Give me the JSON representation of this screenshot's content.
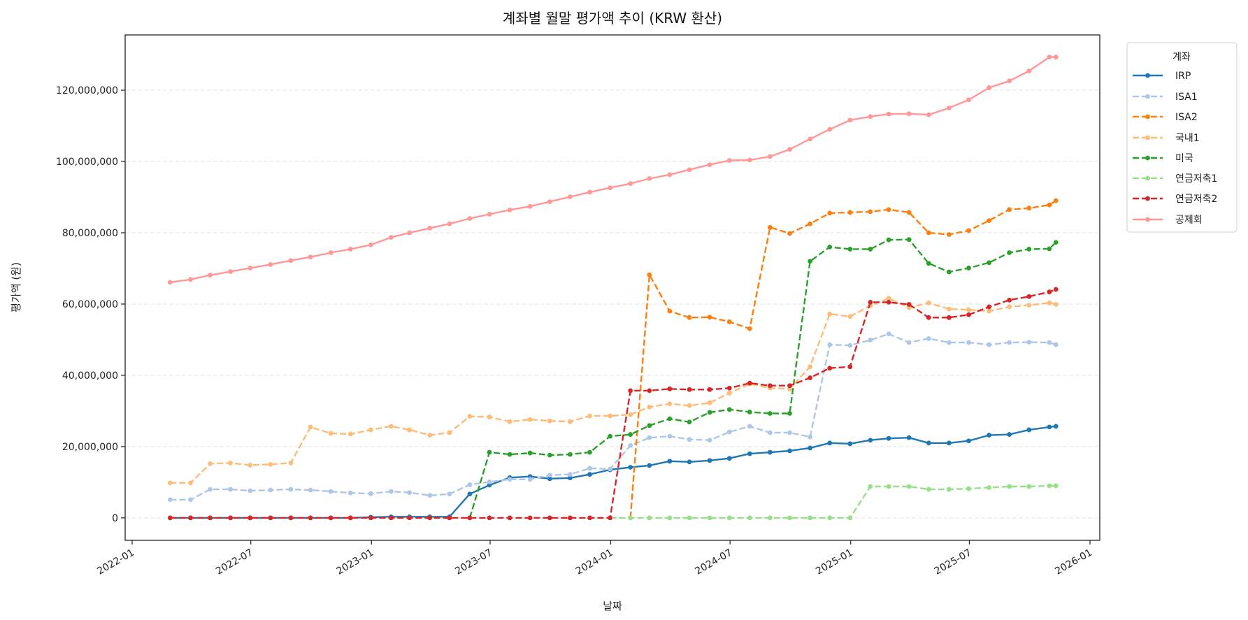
{
  "chart_data": {
    "type": "line",
    "title": "계좌별 월말 평가액 추이 (KRW 환산)",
    "xlabel": "날짜",
    "ylabel": "평가액 (원)",
    "xlim": [
      "2021-12-01",
      "2026-01-20"
    ],
    "ylim": [
      -6300000,
      135500000
    ],
    "x_ticks": [
      "2022-01",
      "2022-07",
      "2023-01",
      "2023-07",
      "2024-01",
      "2024-07",
      "2025-01",
      "2025-07",
      "2026-01"
    ],
    "y_ticks": [
      0,
      20000000,
      40000000,
      60000000,
      80000000,
      100000000,
      120000000
    ],
    "y_tick_labels": [
      "0",
      "20,000,000",
      "40,000,000",
      "60,000,000",
      "80,000,000",
      "100,000,000",
      "120,000,000"
    ],
    "grid": "horizontal dashed",
    "legend": {
      "title": "계좌",
      "placement": "outside-top-right"
    },
    "x": [
      "2022-02-28",
      "2022-03-31",
      "2022-04-30",
      "2022-05-31",
      "2022-06-30",
      "2022-07-31",
      "2022-08-31",
      "2022-09-30",
      "2022-10-31",
      "2022-11-30",
      "2022-12-31",
      "2023-01-31",
      "2023-02-28",
      "2023-03-31",
      "2023-04-30",
      "2023-05-31",
      "2023-06-30",
      "2023-07-31",
      "2023-08-31",
      "2023-09-30",
      "2023-10-31",
      "2023-11-30",
      "2023-12-31",
      "2024-01-31",
      "2024-02-29",
      "2024-03-31",
      "2024-04-30",
      "2024-05-31",
      "2024-06-30",
      "2024-07-31",
      "2024-08-31",
      "2024-09-30",
      "2024-10-31",
      "2024-11-30",
      "2024-12-31",
      "2025-01-31",
      "2025-02-28",
      "2025-03-31",
      "2025-04-30",
      "2025-05-31",
      "2025-06-30",
      "2025-07-31",
      "2025-08-31",
      "2025-09-30",
      "2025-10-31",
      "2025-11-10"
    ],
    "series": [
      {
        "name": "IRP",
        "color": "#1f77b4",
        "linestyle": "solid",
        "values": [
          0,
          0,
          0,
          0,
          0,
          0,
          0,
          0,
          0,
          0,
          200000,
          300000,
          300000,
          300000,
          300000,
          6700000,
          9200000,
          11300000,
          11600000,
          11000000,
          11200000,
          12200000,
          13500000,
          14200000,
          14700000,
          15900000,
          15700000,
          16100000,
          16700000,
          18000000,
          18400000,
          18800000,
          19600000,
          21000000,
          20800000,
          21800000,
          22300000,
          22500000,
          21000000,
          21000000,
          21600000,
          23200000,
          23400000,
          24700000,
          25500000,
          25700000
        ]
      },
      {
        "name": "ISA1",
        "color": "#aec7e8",
        "linestyle": "dashed",
        "values": [
          5100000,
          5100000,
          8000000,
          8000000,
          7600000,
          7800000,
          8000000,
          7800000,
          7400000,
          7000000,
          6800000,
          7400000,
          7100000,
          6300000,
          6700000,
          9300000,
          10100000,
          10800000,
          10800000,
          12000000,
          12200000,
          13900000,
          13700000,
          20300000,
          22500000,
          22900000,
          22000000,
          21800000,
          24100000,
          25700000,
          23900000,
          23900000,
          22700000,
          48600000,
          48400000,
          49900000,
          51600000,
          49200000,
          50300000,
          49200000,
          49200000,
          48600000,
          49200000,
          49300000,
          49200000,
          48600000
        ]
      },
      {
        "name": "ISA2",
        "color": "#ff7f0e",
        "linestyle": "dashed",
        "values": [
          null,
          null,
          null,
          null,
          null,
          null,
          null,
          null,
          null,
          null,
          null,
          null,
          null,
          null,
          null,
          null,
          null,
          null,
          null,
          null,
          null,
          null,
          null,
          0,
          68200000,
          58000000,
          56200000,
          56300000,
          55000000,
          53100000,
          81500000,
          79800000,
          82500000,
          85500000,
          85700000,
          85900000,
          86500000,
          85700000,
          80000000,
          79500000,
          80600000,
          83400000,
          86500000,
          86900000,
          87800000,
          89000000
        ]
      },
      {
        "name": "국내1",
        "color": "#ffbb78",
        "linestyle": "dashed",
        "values": [
          9800000,
          9800000,
          15200000,
          15400000,
          14800000,
          15000000,
          15400000,
          25500000,
          23700000,
          23500000,
          24700000,
          25700000,
          24700000,
          23200000,
          23900000,
          28500000,
          28300000,
          27000000,
          27600000,
          27200000,
          27000000,
          28600000,
          28600000,
          29000000,
          31100000,
          32000000,
          31500000,
          32300000,
          35000000,
          37600000,
          36400000,
          36200000,
          42400000,
          57200000,
          56500000,
          59500000,
          61600000,
          59000000,
          60300000,
          58600000,
          58400000,
          58000000,
          59200000,
          59700000,
          60300000,
          59900000
        ]
      },
      {
        "name": "미국",
        "color": "#2ca02c",
        "linestyle": "dashed",
        "values": [
          null,
          null,
          null,
          null,
          null,
          null,
          null,
          null,
          null,
          null,
          null,
          null,
          null,
          null,
          null,
          0,
          18400000,
          17800000,
          18200000,
          17600000,
          17800000,
          18400000,
          22900000,
          23400000,
          25900000,
          27800000,
          26900000,
          29600000,
          30400000,
          29700000,
          29300000,
          29300000,
          72000000,
          76000000,
          75400000,
          75400000,
          78000000,
          78100000,
          71400000,
          69000000,
          70100000,
          71600000,
          74400000,
          75400000,
          75500000,
          77300000
        ]
      },
      {
        "name": "연금저축1",
        "color": "#98df8a",
        "linestyle": "dashed",
        "values": [
          null,
          null,
          null,
          null,
          null,
          null,
          null,
          null,
          null,
          null,
          null,
          null,
          null,
          null,
          null,
          null,
          null,
          null,
          null,
          null,
          null,
          null,
          0,
          0,
          0,
          0,
          0,
          0,
          0,
          0,
          0,
          0,
          0,
          0,
          0,
          8800000,
          8800000,
          8800000,
          8000000,
          8000000,
          8200000,
          8500000,
          8800000,
          8800000,
          9000000,
          9000000
        ]
      },
      {
        "name": "연금저축2",
        "color": "#d62728",
        "linestyle": "dashed",
        "values": [
          0,
          0,
          0,
          0,
          0,
          0,
          0,
          0,
          0,
          0,
          0,
          0,
          0,
          0,
          0,
          0,
          0,
          0,
          0,
          0,
          0,
          0,
          0,
          35700000,
          35700000,
          36200000,
          36000000,
          36000000,
          36400000,
          37800000,
          37100000,
          37100000,
          39300000,
          42000000,
          42400000,
          60500000,
          60500000,
          59900000,
          56200000,
          56200000,
          57000000,
          59200000,
          61100000,
          62100000,
          63400000,
          64100000
        ]
      },
      {
        "name": "공제회",
        "color": "#ff9896",
        "linestyle": "solid",
        "values": [
          66100000,
          66900000,
          68100000,
          69100000,
          70100000,
          71100000,
          72200000,
          73200000,
          74400000,
          75400000,
          76600000,
          78700000,
          80000000,
          81300000,
          82500000,
          84000000,
          85200000,
          86400000,
          87400000,
          88700000,
          90100000,
          91400000,
          92600000,
          93800000,
          95200000,
          96300000,
          97700000,
          99100000,
          100300000,
          100400000,
          101400000,
          103400000,
          106300000,
          109000000,
          111600000,
          112600000,
          113300000,
          113400000,
          113100000,
          115000000,
          117300000,
          120700000,
          122600000,
          125400000,
          129300000,
          129300000
        ]
      }
    ]
  }
}
